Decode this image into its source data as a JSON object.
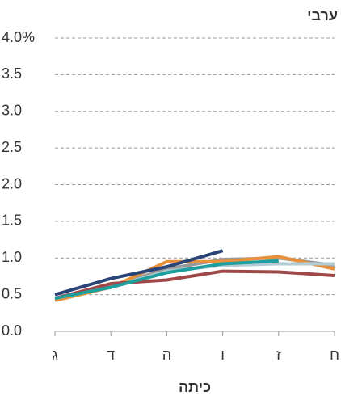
{
  "chart_data": {
    "type": "line",
    "title": "ערבי",
    "x_label": "כיתה",
    "categories": [
      "ג",
      "ד",
      "ה",
      "ו",
      "ז",
      "ח"
    ],
    "series": [
      {
        "color": "#999999",
        "values": [
          0.45,
          0.62,
          0.85,
          0.98,
          1.0,
          0.9
        ]
      },
      {
        "color": "#e8913a",
        "values": [
          0.42,
          0.6,
          0.95,
          0.95,
          1.02,
          0.85
        ]
      },
      {
        "color": "#b3ccd3",
        "values": [
          0.45,
          0.6,
          0.82,
          0.9,
          0.92,
          0.92
        ]
      },
      {
        "color": "#a04848",
        "values": [
          0.45,
          0.65,
          0.7,
          0.82,
          0.81,
          0.76
        ]
      },
      {
        "color": "#1f9e9e",
        "values": [
          0.45,
          0.6,
          0.8,
          0.92,
          0.96,
          null
        ]
      },
      {
        "color": "#2a4478",
        "values": [
          0.5,
          0.72,
          0.88,
          1.1,
          null,
          null
        ]
      }
    ],
    "ylim": [
      0,
      4
    ],
    "yticks": [
      {
        "value": 0,
        "label": "0.0"
      },
      0.5,
      {
        "value": 1,
        "label": "1.0"
      },
      1.5,
      {
        "value": 2,
        "label": "2.0"
      },
      2.5,
      {
        "value": 3,
        "label": "3.0"
      },
      3.5,
      {
        "value": 4,
        "label": "4.0%"
      }
    ],
    "grid": true
  }
}
